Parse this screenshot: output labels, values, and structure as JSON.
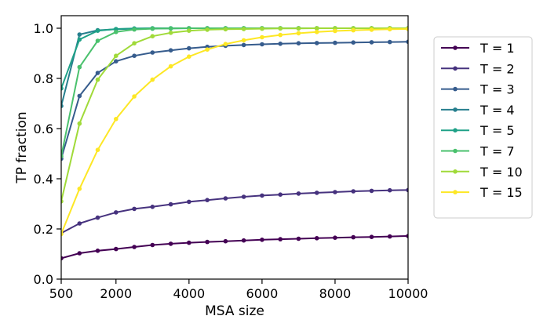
{
  "chart_data": {
    "type": "line",
    "title": "",
    "xlabel": "MSA size",
    "ylabel": "TP fraction",
    "xlim": [
      500,
      10000
    ],
    "ylim": [
      0.0,
      1.05
    ],
    "xticks": [
      500,
      2000,
      4000,
      6000,
      8000,
      10000
    ],
    "xtick_labels": [
      "500",
      "2000",
      "4000",
      "6000",
      "8000",
      "10000"
    ],
    "yticks": [
      0.0,
      0.2,
      0.4,
      0.6,
      0.8,
      1.0
    ],
    "ytick_labels": [
      "0.0",
      "0.2",
      "0.4",
      "0.6",
      "0.8",
      "1.0"
    ],
    "grid": false,
    "legend_position": "outside-right",
    "x": [
      500,
      1000,
      1500,
      2000,
      2500,
      3000,
      3500,
      4000,
      4500,
      5000,
      5500,
      6000,
      6500,
      7000,
      7500,
      8000,
      8500,
      9000,
      9500,
      10000
    ],
    "series": [
      {
        "name": "T = 1",
        "color": "#440154",
        "values": [
          0.083,
          0.103,
          0.113,
          0.12,
          0.128,
          0.136,
          0.141,
          0.145,
          0.148,
          0.151,
          0.154,
          0.157,
          0.159,
          0.161,
          0.163,
          0.165,
          0.167,
          0.168,
          0.17,
          0.172
        ]
      },
      {
        "name": "T = 2",
        "color": "#46327e",
        "values": [
          0.183,
          0.222,
          0.245,
          0.266,
          0.28,
          0.288,
          0.298,
          0.308,
          0.315,
          0.322,
          0.328,
          0.333,
          0.337,
          0.341,
          0.344,
          0.347,
          0.35,
          0.352,
          0.354,
          0.355
        ]
      },
      {
        "name": "T = 3",
        "color": "#365c8d",
        "values": [
          0.48,
          0.73,
          0.822,
          0.868,
          0.89,
          0.903,
          0.912,
          0.92,
          0.926,
          0.93,
          0.933,
          0.936,
          0.938,
          0.94,
          0.941,
          0.942,
          0.943,
          0.944,
          0.945,
          0.946
        ]
      },
      {
        "name": "T = 4",
        "color": "#277f8e",
        "values": [
          0.69,
          0.975,
          0.992,
          0.996,
          0.998,
          0.999,
          0.999,
          1.0,
          1.0,
          1.0,
          1.0,
          1.0,
          1.0,
          1.0,
          1.0,
          1.0,
          1.0,
          1.0,
          1.0,
          1.0
        ]
      },
      {
        "name": "T = 5",
        "color": "#1fa187",
        "values": [
          0.76,
          0.955,
          0.99,
          0.997,
          0.999,
          1.0,
          1.0,
          1.0,
          1.0,
          1.0,
          1.0,
          1.0,
          1.0,
          1.0,
          1.0,
          1.0,
          1.0,
          1.0,
          1.0,
          1.0
        ]
      },
      {
        "name": "T = 7",
        "color": "#4ac16d",
        "values": [
          0.49,
          0.845,
          0.95,
          0.985,
          0.995,
          0.998,
          0.999,
          1.0,
          1.0,
          1.0,
          1.0,
          1.0,
          1.0,
          1.0,
          1.0,
          1.0,
          1.0,
          1.0,
          1.0,
          1.0
        ]
      },
      {
        "name": "T = 10",
        "color": "#a0da39",
        "values": [
          0.31,
          0.62,
          0.795,
          0.89,
          0.94,
          0.968,
          0.982,
          0.99,
          0.994,
          0.996,
          0.997,
          0.998,
          0.999,
          0.999,
          1.0,
          1.0,
          1.0,
          1.0,
          1.0,
          1.0
        ]
      },
      {
        "name": "T = 15",
        "color": "#fde725",
        "values": [
          0.18,
          0.36,
          0.515,
          0.638,
          0.728,
          0.795,
          0.848,
          0.887,
          0.915,
          0.937,
          0.952,
          0.964,
          0.973,
          0.98,
          0.985,
          0.989,
          0.992,
          0.994,
          0.996,
          0.997
        ]
      }
    ]
  }
}
